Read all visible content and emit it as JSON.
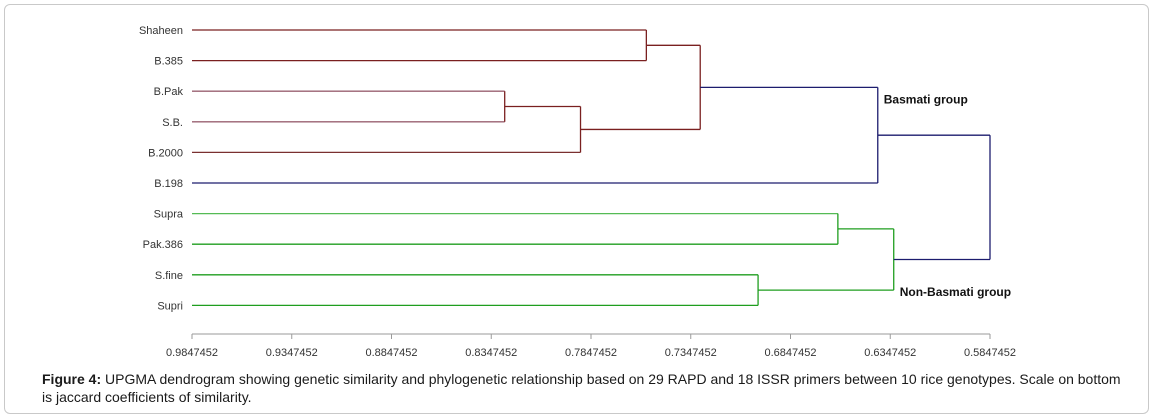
{
  "chart_data": {
    "type": "dendrogram",
    "axis": {
      "ticks": [
        0.9847452,
        0.9347452,
        0.8847452,
        0.8347452,
        0.7847452,
        0.7347452,
        0.6847452,
        0.6347452,
        0.5847452
      ],
      "tick_labels": [
        "0.9847452",
        "0.9347452",
        "0.8847452",
        "0.8347452",
        "0.7847452",
        "0.7347452",
        "0.6847452",
        "0.6347452",
        "0.5847452"
      ],
      "range": [
        0.9847452,
        0.5847452
      ],
      "reversed": true
    },
    "leaves": [
      "Shaheen",
      "B.385",
      "B.Pak",
      "S.B.",
      "B.2000",
      "B.198",
      "Supra",
      "Pak.386",
      "S.fine",
      "Supri"
    ],
    "merges": [
      {
        "id": "m_shaheen_b385",
        "children": [
          "L0",
          "L1"
        ],
        "height": 0.757,
        "color": "#7a2020"
      },
      {
        "id": "m_bpak_sb",
        "children": [
          "L2",
          "L3"
        ],
        "height": 0.828,
        "color": "#7a2020"
      },
      {
        "id": "m_bpak_sb_b2000",
        "children": [
          "m_bpak_sb",
          "L4"
        ],
        "height": 0.79,
        "color": "#7a2020"
      },
      {
        "id": "m_brown",
        "children": [
          "m_shaheen_b385",
          "m_bpak_sb_b2000"
        ],
        "height": 0.73,
        "color": "#7a2020"
      },
      {
        "id": "m_basmati",
        "children": [
          "m_brown",
          "L5"
        ],
        "height": 0.641,
        "color": "#1c1c6e"
      },
      {
        "id": "m_supra_pak386",
        "children": [
          "L6",
          "L7"
        ],
        "height": 0.661,
        "color": "#1f9e1f"
      },
      {
        "id": "m_sfine_supri",
        "children": [
          "L8",
          "L9"
        ],
        "height": 0.701,
        "color": "#1f9e1f"
      },
      {
        "id": "m_nonbasmati",
        "children": [
          "m_supra_pak386",
          "m_sfine_supri"
        ],
        "height": 0.633,
        "color": "#1f9e1f"
      },
      {
        "id": "m_root",
        "children": [
          "m_basmati",
          "m_nonbasmati"
        ],
        "height": 0.5847452,
        "color": "#1c1c6e"
      }
    ],
    "leaf_colors": {
      "Shaheen": "#7a2020",
      "B.385": "#7a2020",
      "B.Pak": "#9a6070",
      "S.B.": "#9a6070",
      "B.2000": "#7a3030",
      "B.198": "#1c1c6e",
      "Supra": "#55bb55",
      "Pak.386": "#1f9e1f",
      "S.fine": "#1f9e1f",
      "Supri": "#1f9e1f"
    },
    "group_labels": [
      {
        "text": "Basmati group",
        "merge": "m_basmati"
      },
      {
        "text": "Non-Basmati group",
        "merge": "m_nonbasmati"
      }
    ]
  },
  "caption": {
    "label": "Figure 4:",
    "text": " UPGMA dendrogram showing genetic similarity and phylogenetic relationship based on 29 RAPD and 18 ISSR primers between 10 rice genotypes. Scale on bottom is jaccard coefficients of similarity."
  }
}
